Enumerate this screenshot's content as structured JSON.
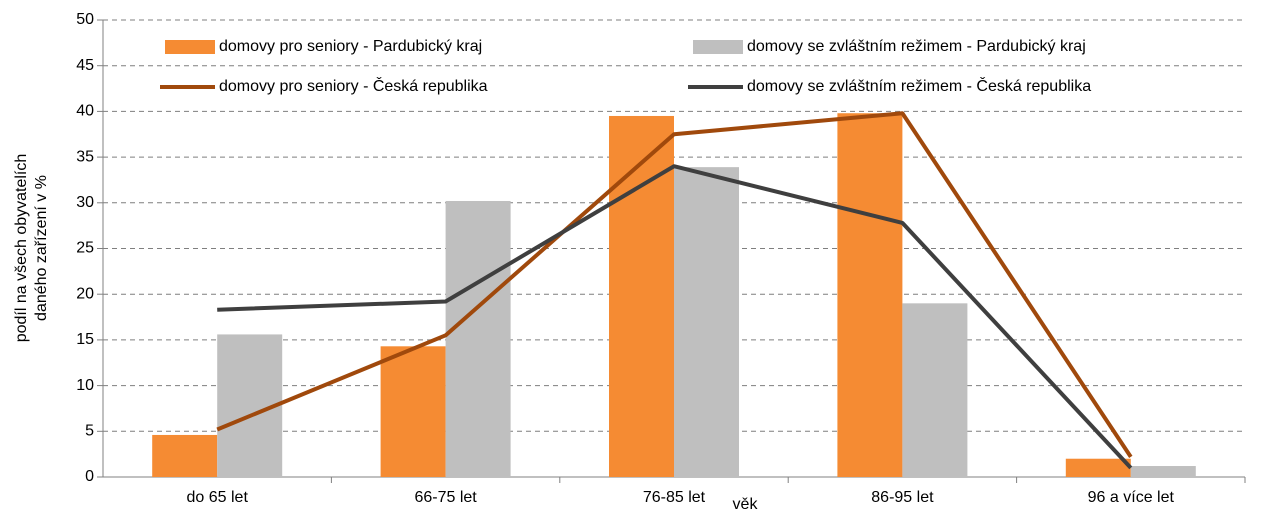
{
  "chart_data": {
    "type": "bar",
    "ylabel": [
      "podíl na všech obyvatelích",
      "daného zařízení v %"
    ],
    "xlabel": "věk",
    "categories": [
      "do 65 let",
      "66-75 let",
      "76-85 let",
      "86-95 let",
      "96 a více let"
    ],
    "series": [
      {
        "name": "domovy pro seniory - Pardubický kraj",
        "kind": "bar",
        "color": "#f58b33",
        "values": [
          4.6,
          14.3,
          39.5,
          39.8,
          2.0
        ]
      },
      {
        "name": "domovy se zvláštním režimem - Pardubický kraj",
        "kind": "bar",
        "color": "#bfbfbf",
        "values": [
          15.6,
          30.2,
          33.9,
          19.0,
          1.2
        ]
      },
      {
        "name": "domovy pro seniory - Česká republika",
        "kind": "line",
        "color": "#a0490c",
        "values": [
          5.2,
          15.5,
          37.5,
          39.8,
          2.2
        ]
      },
      {
        "name": "domovy se zvláštním režimem - Česká republika",
        "kind": "line",
        "color": "#3f3f3f",
        "values": [
          18.3,
          19.2,
          34.0,
          27.8,
          1.0
        ]
      }
    ],
    "ylim": [
      0,
      50
    ],
    "yticks": [
      0,
      5,
      10,
      15,
      20,
      25,
      30,
      35,
      40,
      45,
      50
    ],
    "grid": true
  }
}
